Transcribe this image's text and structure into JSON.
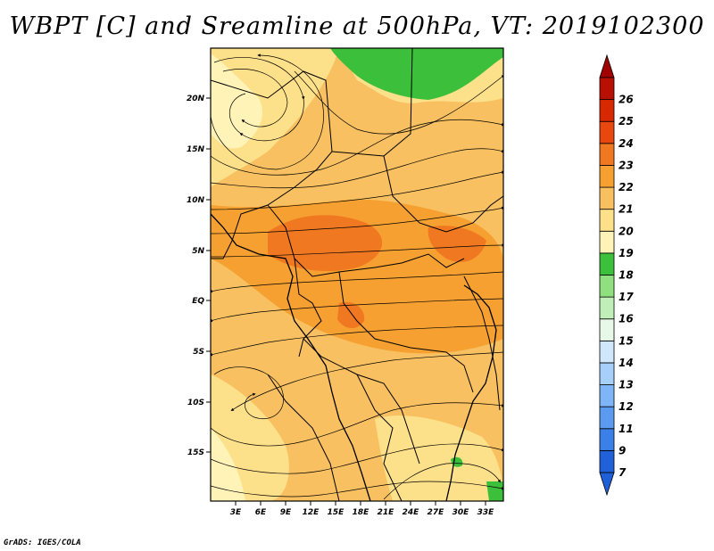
{
  "title": "WBPT [C] and Sreamline at 500hPa, VT: 2019102300",
  "footer": "GrADS: IGES/COLA",
  "lat_labels": [
    "20N",
    "15N",
    "10N",
    "5N",
    "EQ",
    "5S",
    "10S",
    "15S"
  ],
  "lon_labels": [
    "3E",
    "6E",
    "9E",
    "12E",
    "15E",
    "18E",
    "21E",
    "24E",
    "27E",
    "30E",
    "33E"
  ],
  "colorbar": {
    "labels": [
      "7",
      "9",
      "11",
      "12",
      "13",
      "14",
      "15",
      "16",
      "17",
      "18",
      "19",
      "20",
      "21",
      "22",
      "23",
      "24",
      "25",
      "26"
    ],
    "colors": [
      "#2060d8",
      "#3a80e8",
      "#5a9bf0",
      "#7db5f6",
      "#a6cff9",
      "#cfe6fb",
      "#e8f8e8",
      "#c0efb8",
      "#90e080",
      "#3cc03c",
      "#fff3b8",
      "#fde08a",
      "#f8c060",
      "#f5a030",
      "#f07820",
      "#e84810",
      "#d82800",
      "#b81000"
    ],
    "bottom_arrow": "#1f5fd8",
    "top_arrow": "#a00000"
  }
}
